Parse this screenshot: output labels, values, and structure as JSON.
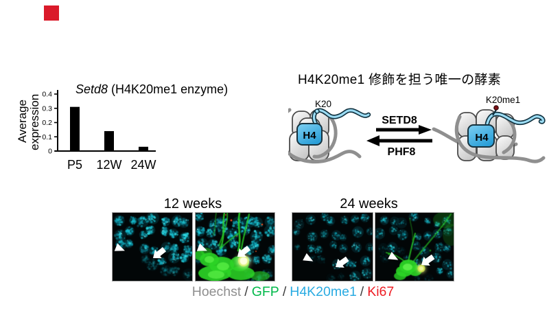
{
  "marker": {
    "color": "#da1a2a"
  },
  "chart_data": {
    "type": "bar",
    "title_gene": "Setd8",
    "title_rest": " (H4K20me1 enzyme)",
    "ylabel": "Average expression",
    "ylabel_lines": [
      "Average",
      "expression"
    ],
    "categories": [
      "P5",
      "12W",
      "24W"
    ],
    "values": [
      0.31,
      0.14,
      0.03
    ],
    "yticks": [
      "0.4",
      "0.3",
      "0.2",
      "0.1",
      "0"
    ],
    "ylim": [
      0,
      0.4
    ],
    "bar_color": "#000000",
    "grid": false
  },
  "pathway": {
    "title": "H4K20me1 修飾を担う唯一の酵素",
    "forward_enzyme": "SETD8",
    "reverse_enzyme": "PHF8",
    "left": {
      "histone": "H4",
      "residue": "K20"
    },
    "right": {
      "histone": "H4",
      "residue": "K20me1"
    },
    "colors": {
      "h4": "#3eb3e6",
      "tail": "#9bdcf4",
      "dna": "#8f8f8f",
      "histone_light": "#fdfdfd",
      "histone_dark": "#cfcfcf",
      "outline": "#4a4a4a",
      "methyl": "#7c1116"
    }
  },
  "micrographs": {
    "groups": [
      {
        "label": "12 weeks"
      },
      {
        "label": "24 weeks"
      }
    ],
    "legend": [
      {
        "text": "Hoechst",
        "color": "#8f8f8f"
      },
      {
        "text": "/",
        "color": "#3d3d3d"
      },
      {
        "text": "GFP",
        "color": "#00b94a"
      },
      {
        "text": "/",
        "color": "#3d3d3d"
      },
      {
        "text": "H4K20me1",
        "color": "#29abe2"
      },
      {
        "text": "/",
        "color": "#3d3d3d"
      },
      {
        "text": "Ki67",
        "color": "#ee1c23"
      }
    ],
    "stain_colors": {
      "nuclei": "#19c2d4",
      "gfp": "#2bd426",
      "ki67": "#ff5522",
      "bright_cell": "#fdffe0"
    }
  }
}
